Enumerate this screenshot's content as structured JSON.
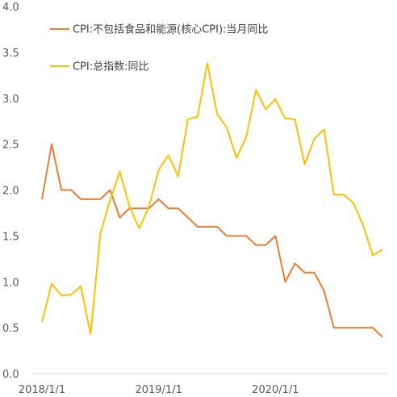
{
  "chart_data": {
    "type": "line",
    "x_labels": [
      "2018/1/1",
      "2019/1/1",
      "2020/1/1"
    ],
    "x_label_index": [
      0,
      12,
      24
    ],
    "y_ticks": [
      "0.0",
      "0.5",
      "1.0",
      "1.5",
      "2.0",
      "2.5",
      "3.0",
      "3.5",
      "4.0"
    ],
    "ylim": [
      0,
      4
    ],
    "grid": false,
    "legend_position": "top-left",
    "series": [
      {
        "name": "CPI:不包括食品和能源(核心CPI):当月同比",
        "color": "#ED7D31",
        "values": [
          1.9,
          2.5,
          2.0,
          2.0,
          1.9,
          1.9,
          1.9,
          2.0,
          1.7,
          1.8,
          1.8,
          1.8,
          1.9,
          1.8,
          1.8,
          1.7,
          1.6,
          1.6,
          1.6,
          1.5,
          1.5,
          1.5,
          1.4,
          1.4,
          1.5,
          1.0,
          1.2,
          1.1,
          1.1,
          0.9,
          0.5,
          0.5,
          0.5,
          0.5,
          0.5,
          0.4
        ]
      },
      {
        "name": "CPI:总指数:同比",
        "color": "#FFC000",
        "values": [
          0.56,
          0.98,
          0.85,
          0.86,
          0.95,
          0.43,
          1.52,
          1.89,
          2.2,
          1.82,
          1.58,
          1.82,
          2.22,
          2.38,
          2.15,
          2.77,
          2.8,
          3.38,
          2.83,
          2.68,
          2.35,
          2.58,
          3.09,
          2.88,
          2.99,
          2.78,
          2.77,
          2.28,
          2.56,
          2.66,
          1.95,
          1.95,
          1.86,
          1.62,
          1.29,
          1.35
        ]
      }
    ]
  }
}
